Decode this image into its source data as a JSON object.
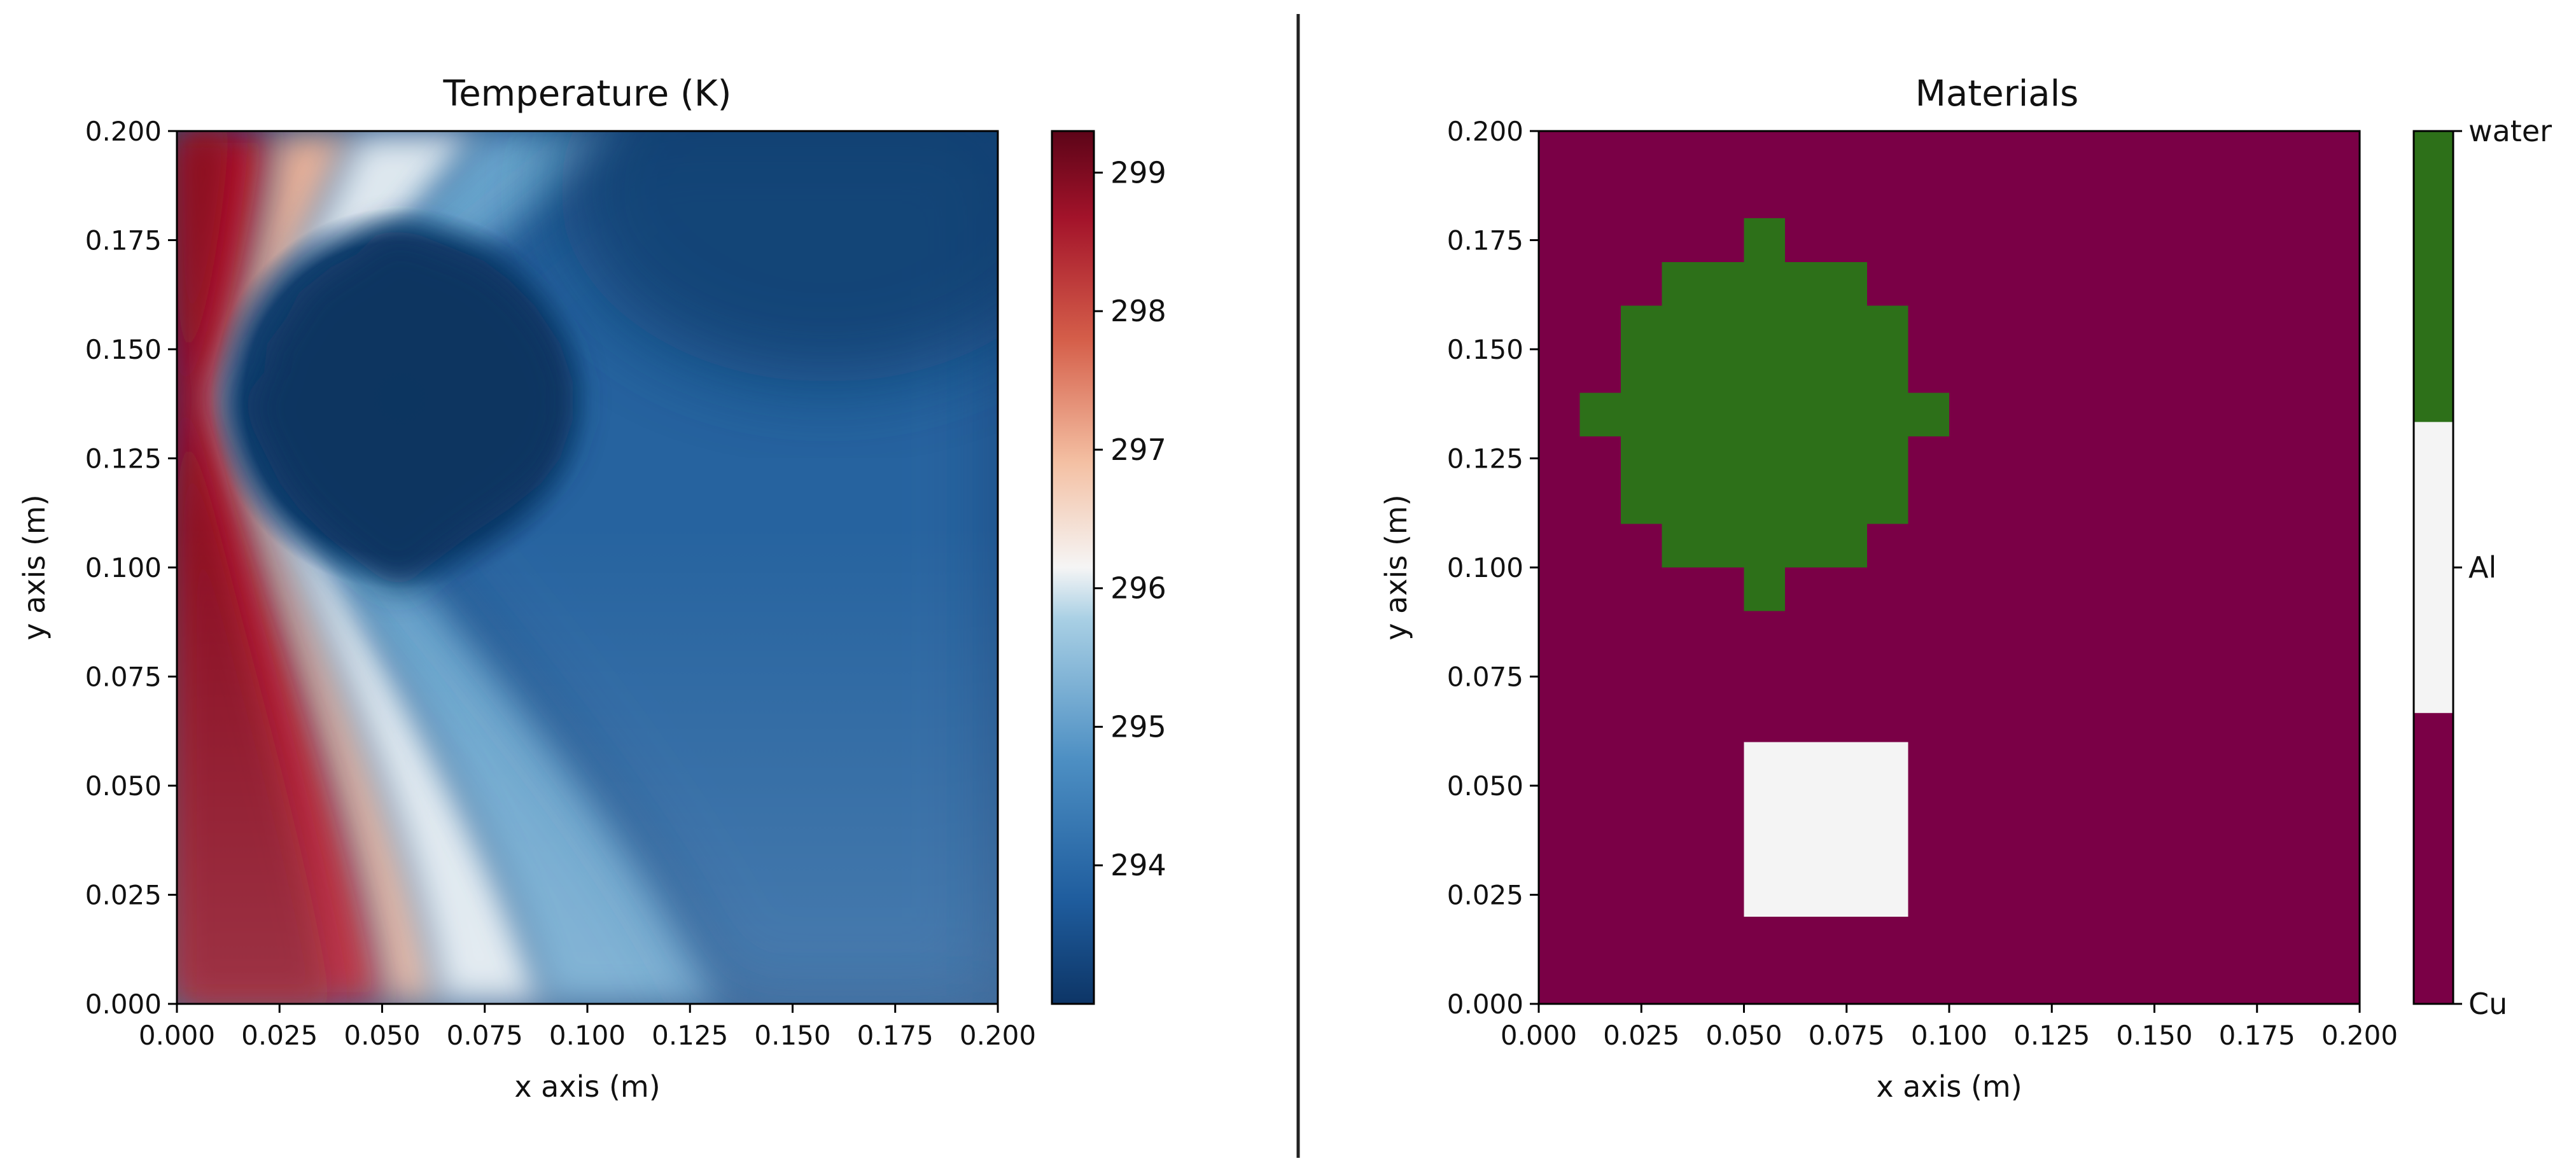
{
  "chart_data": [
    {
      "type": "heatmap",
      "title": "Temperature (K)",
      "xlabel": "x axis (m)",
      "ylabel": "y axis (m)",
      "xlim": [
        0.0,
        0.2
      ],
      "ylim": [
        0.0,
        0.2
      ],
      "xticks": [
        "0.000",
        "0.025",
        "0.050",
        "0.075",
        "0.100",
        "0.125",
        "0.150",
        "0.175",
        "0.200"
      ],
      "yticks": [
        "0.000",
        "0.025",
        "0.050",
        "0.075",
        "0.100",
        "0.125",
        "0.150",
        "0.175",
        "0.200"
      ],
      "colormap": "RdBu_r",
      "colorbar": {
        "min": 293.0,
        "max": 299.3,
        "ticks": [
          "294",
          "295",
          "296",
          "297",
          "298",
          "299"
        ],
        "tick_values": [
          294,
          295,
          296,
          297,
          298,
          299
        ]
      },
      "field_samples": {
        "description_units": "K",
        "points": [
          {
            "x": 0.0,
            "y": 0.0,
            "value": 299.3
          },
          {
            "x": 0.0,
            "y": 0.2,
            "value": 298.6
          },
          {
            "x": 0.01,
            "y": 0.135,
            "value": 296.0
          },
          {
            "x": 0.045,
            "y": 0.0,
            "value": 297.0
          },
          {
            "x": 0.055,
            "y": 0.0,
            "value": 296.0
          },
          {
            "x": 0.055,
            "y": 0.135,
            "value": 293.0
          },
          {
            "x": 0.1,
            "y": 0.05,
            "value": 294.6
          },
          {
            "x": 0.2,
            "y": 0.0,
            "value": 293.6
          },
          {
            "x": 0.2,
            "y": 0.2,
            "value": 293.1
          }
        ]
      }
    },
    {
      "type": "heatmap",
      "title": "Materials",
      "xlabel": "x axis (m)",
      "ylabel": "y axis (m)",
      "xlim": [
        0.0,
        0.2
      ],
      "ylim": [
        0.0,
        0.2
      ],
      "xticks": [
        "0.000",
        "0.025",
        "0.050",
        "0.075",
        "0.100",
        "0.125",
        "0.150",
        "0.175",
        "0.200"
      ],
      "yticks": [
        "0.000",
        "0.025",
        "0.050",
        "0.075",
        "0.100",
        "0.125",
        "0.150",
        "0.175",
        "0.200"
      ],
      "colorbar": {
        "categories": [
          "Cu",
          "Al",
          "water"
        ],
        "colors": [
          "#7a0046",
          "#f4f4f4",
          "#2d7019"
        ]
      },
      "background_material": "Cu",
      "regions": [
        {
          "material": "water",
          "shape": "pixelated-disk",
          "rects": [
            [
              0.05,
              0.09,
              0.06,
              0.18
            ],
            [
              0.03,
              0.1,
              0.08,
              0.17
            ],
            [
              0.02,
              0.11,
              0.09,
              0.16
            ],
            [
              0.01,
              0.13,
              0.1,
              0.14
            ]
          ]
        },
        {
          "material": "Al",
          "shape": "rectangle",
          "rects": [
            [
              0.05,
              0.02,
              0.09,
              0.06
            ]
          ]
        }
      ]
    }
  ],
  "colors": {
    "cu": "#7a0046",
    "al": "#f4f4f4",
    "water": "#2d7019",
    "divider": "#222222"
  }
}
